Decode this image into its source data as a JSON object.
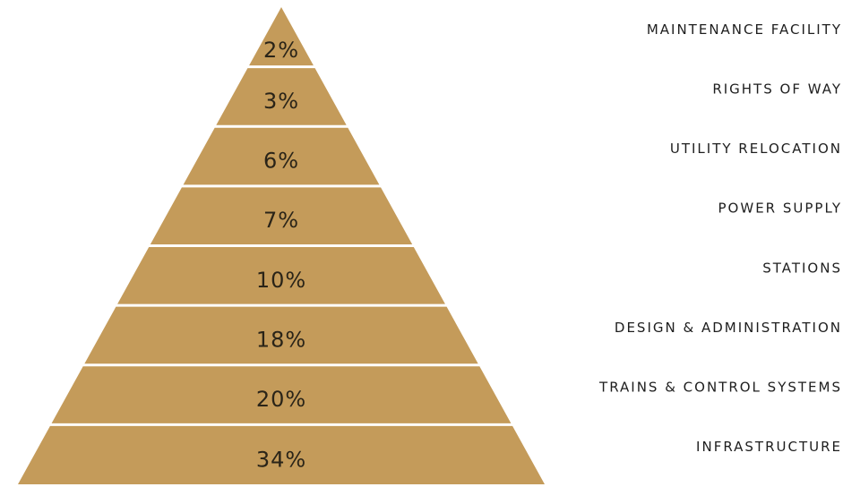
{
  "chart_data": {
    "type": "pyramid",
    "color": "#c49b5a",
    "categories": [
      "MAINTENANCE FACILITY",
      "RIGHTS OF WAY",
      "UTILITY RELOCATION",
      "POWER SUPPLY",
      "STATIONS",
      "DESIGN & ADMINISTRATION",
      "TRAINS & CONTROL SYSTEMS",
      "INFRASTRUCTURE"
    ],
    "values": [
      2,
      3,
      6,
      7,
      10,
      18,
      20,
      34
    ],
    "value_labels": [
      "2%",
      "3%",
      "6%",
      "7%",
      "10%",
      "18%",
      "20%",
      "34%"
    ]
  }
}
